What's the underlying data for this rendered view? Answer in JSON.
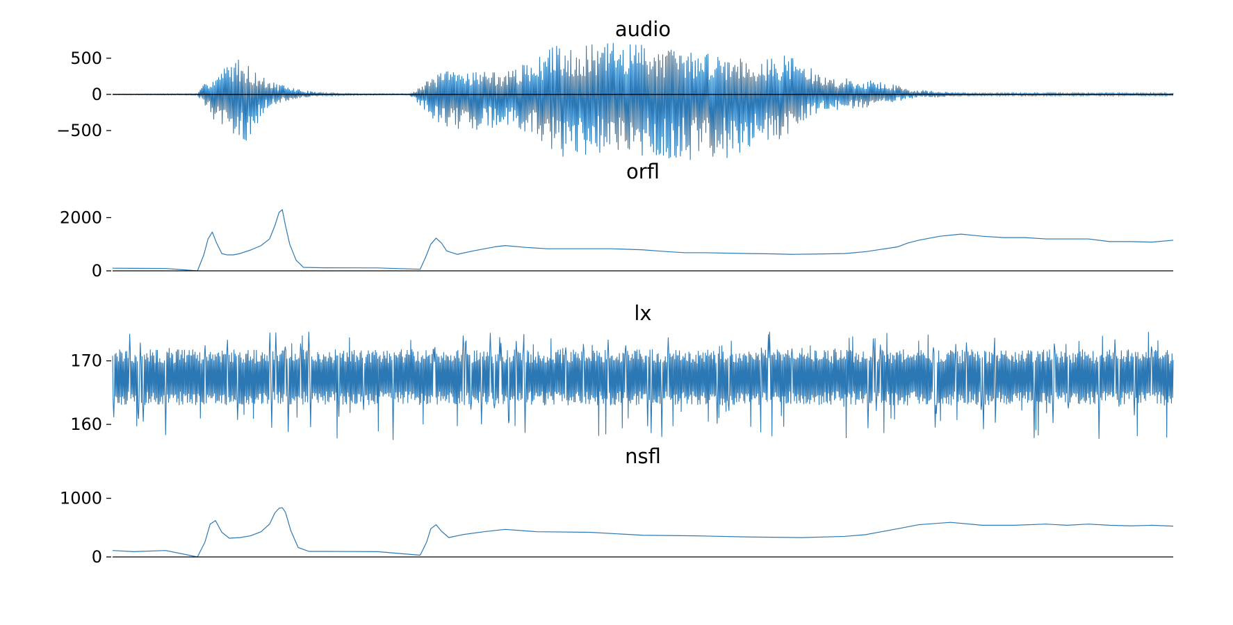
{
  "chart_data": [
    {
      "type": "line",
      "title": "audio",
      "xlabel": "",
      "ylabel": "",
      "ylim": [
        -980,
        700
      ],
      "yticks": [
        500,
        0,
        -500
      ],
      "ytick_labels": [
        "500",
        "0",
        "−500"
      ],
      "grid": false,
      "color": "#2b78b4",
      "baseline": 0,
      "series": [
        {
          "kind": "oscillation",
          "x_samples": 1500,
          "envelope_x": [
            0,
            0.08,
            0.09,
            0.1,
            0.115,
            0.125,
            0.135,
            0.145,
            0.16,
            0.18,
            0.2,
            0.24,
            0.28,
            0.29,
            0.31,
            0.34,
            0.37,
            0.4,
            0.42,
            0.44,
            0.46,
            0.5,
            0.54,
            0.56,
            0.58,
            0.6,
            0.62,
            0.64,
            0.65,
            0.67,
            0.7,
            0.72,
            0.74,
            0.75,
            0.78,
            0.8,
            1.0
          ],
          "envelope_pos": [
            5,
            10,
            220,
            300,
            520,
            450,
            310,
            210,
            130,
            60,
            20,
            10,
            10,
            120,
            320,
            350,
            300,
            500,
            720,
            650,
            720,
            720,
            600,
            580,
            560,
            520,
            500,
            560,
            450,
            250,
            210,
            190,
            130,
            80,
            40,
            20,
            20
          ],
          "envelope_neg": [
            5,
            10,
            230,
            450,
            640,
            660,
            480,
            200,
            110,
            50,
            20,
            10,
            10,
            160,
            450,
            500,
            450,
            600,
            880,
            880,
            820,
            900,
            920,
            880,
            880,
            800,
            700,
            520,
            380,
            230,
            200,
            170,
            100,
            60,
            40,
            20,
            20
          ]
        }
      ]
    },
    {
      "type": "line",
      "title": "orfl",
      "xlabel": "",
      "ylabel": "",
      "ylim": [
        0,
        2350
      ],
      "yticks": [
        2000,
        0
      ],
      "ytick_labels": [
        "2000",
        "0"
      ],
      "grid": false,
      "color": "#2b78b4",
      "baseline": 0,
      "series": [
        {
          "x": [
            0,
            0.02,
            0.05,
            0.08,
            0.086,
            0.09,
            0.094,
            0.098,
            0.103,
            0.108,
            0.114,
            0.12,
            0.13,
            0.14,
            0.148,
            0.153,
            0.157,
            0.16,
            0.163,
            0.167,
            0.173,
            0.18,
            0.2,
            0.25,
            0.29,
            0.295,
            0.3,
            0.305,
            0.31,
            0.315,
            0.325,
            0.34,
            0.36,
            0.37,
            0.39,
            0.41,
            0.44,
            0.47,
            0.5,
            0.52,
            0.54,
            0.56,
            0.6,
            0.62,
            0.64,
            0.66,
            0.69,
            0.71,
            0.74,
            0.75,
            0.76,
            0.78,
            0.8,
            0.82,
            0.84,
            0.86,
            0.88,
            0.9,
            0.92,
            0.94,
            0.96,
            0.98,
            1.0
          ],
          "y": [
            100,
            95,
            90,
            0,
            600,
            1200,
            1460,
            1050,
            650,
            600,
            600,
            650,
            780,
            950,
            1200,
            1700,
            2200,
            2300,
            1700,
            1000,
            400,
            130,
            115,
            110,
            60,
            500,
            1000,
            1230,
            1050,
            750,
            620,
            750,
            900,
            950,
            880,
            830,
            830,
            830,
            790,
            730,
            680,
            680,
            650,
            640,
            620,
            630,
            650,
            720,
            900,
            1050,
            1150,
            1300,
            1380,
            1300,
            1250,
            1250,
            1200,
            1200,
            1200,
            1100,
            1100,
            1080,
            1150
          ]
        }
      ]
    },
    {
      "type": "line",
      "title": "lx",
      "xlabel": "",
      "ylabel": "",
      "ylim": [
        156.3,
        175.2
      ],
      "yticks": [
        170,
        160
      ],
      "ytick_labels": [
        "170",
        "160"
      ],
      "grid": false,
      "color": "#2b78b4",
      "series": [
        {
          "kind": "noise",
          "x_samples": 1800,
          "center": 167,
          "band_low": 163,
          "band_high": 171.8,
          "spike_max": 174.6,
          "spike_min": 157.5
        }
      ]
    },
    {
      "type": "line",
      "title": "nsfl",
      "xlabel": "",
      "ylabel": "",
      "ylim": [
        0,
        1030
      ],
      "yticks": [
        1000,
        0
      ],
      "ytick_labels": [
        "1000",
        "0"
      ],
      "grid": false,
      "color": "#2b78b4",
      "baseline": 0,
      "series": [
        {
          "x": [
            0,
            0.02,
            0.05,
            0.08,
            0.087,
            0.092,
            0.097,
            0.103,
            0.11,
            0.12,
            0.13,
            0.14,
            0.148,
            0.153,
            0.157,
            0.16,
            0.163,
            0.168,
            0.175,
            0.185,
            0.2,
            0.25,
            0.29,
            0.296,
            0.3,
            0.305,
            0.31,
            0.317,
            0.33,
            0.35,
            0.37,
            0.4,
            0.45,
            0.5,
            0.55,
            0.6,
            0.65,
            0.69,
            0.71,
            0.74,
            0.76,
            0.79,
            0.82,
            0.85,
            0.88,
            0.9,
            0.92,
            0.94,
            0.96,
            0.98,
            1.0
          ],
          "y": [
            110,
            90,
            110,
            0,
            250,
            560,
            620,
            420,
            320,
            330,
            360,
            430,
            560,
            750,
            830,
            840,
            760,
            450,
            160,
            95,
            95,
            90,
            30,
            250,
            480,
            550,
            440,
            330,
            380,
            430,
            470,
            430,
            420,
            370,
            360,
            340,
            330,
            350,
            380,
            480,
            550,
            590,
            540,
            540,
            560,
            540,
            560,
            540,
            530,
            540,
            525
          ]
        }
      ]
    }
  ]
}
